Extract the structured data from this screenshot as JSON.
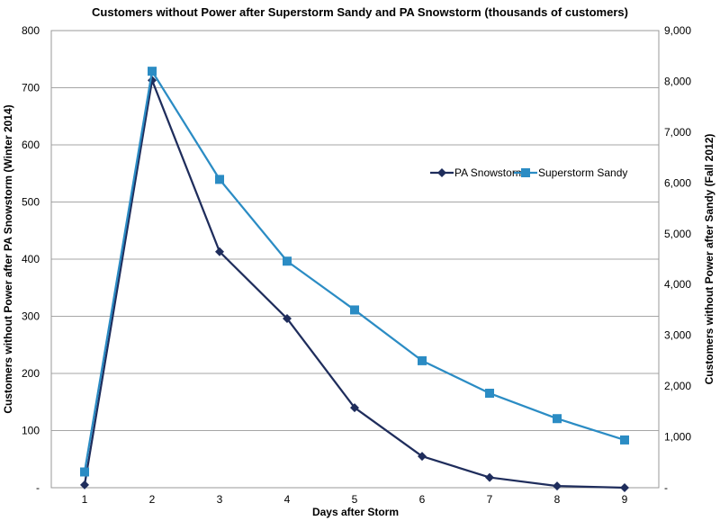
{
  "chart_data": {
    "type": "line",
    "title": "Customers without Power after Superstorm Sandy and PA Snowstorm (thousands of customers)",
    "xlabel": "Days after Storm",
    "ylabel_left": "Customers without Power after PA Snowstorm (Winter 2014)",
    "ylabel_right": "Customers without Power after Sandy (Fall 2012)",
    "x": [
      1,
      2,
      3,
      4,
      5,
      6,
      7,
      8,
      9
    ],
    "x_tick_labels": [
      "1",
      "2",
      "3",
      "4",
      "5",
      "6",
      "7",
      "8",
      "9"
    ],
    "ylim_left": [
      0,
      800
    ],
    "ylim_right": [
      0,
      9000
    ],
    "left_tick_labels": [
      "-",
      "100",
      "200",
      "300",
      "400",
      "500",
      "600",
      "700",
      "800"
    ],
    "left_tick_values": [
      0,
      100,
      200,
      300,
      400,
      500,
      600,
      700,
      800
    ],
    "right_tick_labels": [
      "-",
      "1,000",
      "2,000",
      "3,000",
      "4,000",
      "5,000",
      "6,000",
      "7,000",
      "8,000",
      "9,000"
    ],
    "right_tick_values": [
      0,
      1000,
      2000,
      3000,
      4000,
      5000,
      6000,
      7000,
      8000,
      9000
    ],
    "grid": true,
    "legend_position": "right-center",
    "series": [
      {
        "name": "PA Snowstorm",
        "axis": "left",
        "marker": "diamond",
        "color": "#1f2d5c",
        "values": [
          5,
          713,
          413,
          296,
          140,
          55,
          18,
          3,
          0
        ]
      },
      {
        "name": "Superstorm Sandy",
        "axis": "right",
        "marker": "square",
        "color": "#2b8cc4",
        "values": [
          310,
          8200,
          6070,
          4460,
          3500,
          2500,
          1860,
          1360,
          940
        ]
      }
    ]
  }
}
